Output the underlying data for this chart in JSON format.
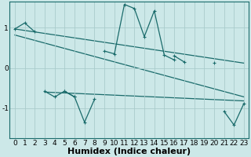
{
  "xlabel": "Humidex (Indice chaleur)",
  "background_color": "#cce8e8",
  "grid_color": "#aacccc",
  "line_color": "#1a6b6b",
  "x_data": [
    0,
    1,
    2,
    3,
    4,
    5,
    6,
    7,
    8,
    9,
    10,
    11,
    12,
    13,
    14,
    15,
    16,
    17,
    18,
    19,
    20,
    21,
    22,
    23
  ],
  "series1": [
    0.97,
    1.12,
    0.9,
    null,
    null,
    null,
    null,
    null,
    null,
    0.42,
    0.35,
    1.58,
    1.48,
    0.78,
    1.42,
    0.32,
    0.2,
    null,
    null,
    null,
    null,
    null,
    null,
    null
  ],
  "series2": [
    null,
    null,
    null,
    null,
    null,
    null,
    null,
    null,
    null,
    null,
    null,
    null,
    null,
    null,
    null,
    null,
    0.3,
    0.15,
    null,
    null,
    0.12,
    null,
    null,
    null
  ],
  "series3": [
    null,
    null,
    null,
    -0.58,
    -0.72,
    -0.58,
    -0.72,
    null,
    null,
    null,
    null,
    null,
    null,
    null,
    null,
    null,
    null,
    null,
    null,
    null,
    null,
    null,
    null,
    null
  ],
  "series3b": [
    null,
    null,
    null,
    null,
    null,
    -0.58,
    -0.72,
    -1.35,
    -0.78,
    null,
    null,
    null,
    null,
    null,
    null,
    null,
    null,
    null,
    null,
    null,
    null,
    null,
    null,
    null
  ],
  "series4": [
    null,
    null,
    null,
    null,
    null,
    null,
    null,
    null,
    null,
    null,
    null,
    null,
    null,
    null,
    null,
    null,
    null,
    null,
    null,
    null,
    null,
    -1.08,
    -1.42,
    -0.88
  ],
  "trend1_x": [
    0,
    23
  ],
  "trend1_y": [
    0.97,
    0.12
  ],
  "trend2_x": [
    0,
    23
  ],
  "trend2_y": [
    0.82,
    -0.72
  ],
  "trend3_x": [
    3,
    23
  ],
  "trend3_y": [
    -0.6,
    -0.82
  ],
  "xlim": [
    -0.5,
    23.5
  ],
  "ylim": [
    -1.75,
    1.65
  ],
  "yticks": [
    -1,
    0,
    1
  ],
  "xlabel_fontsize": 8,
  "tick_fontsize": 6.5
}
